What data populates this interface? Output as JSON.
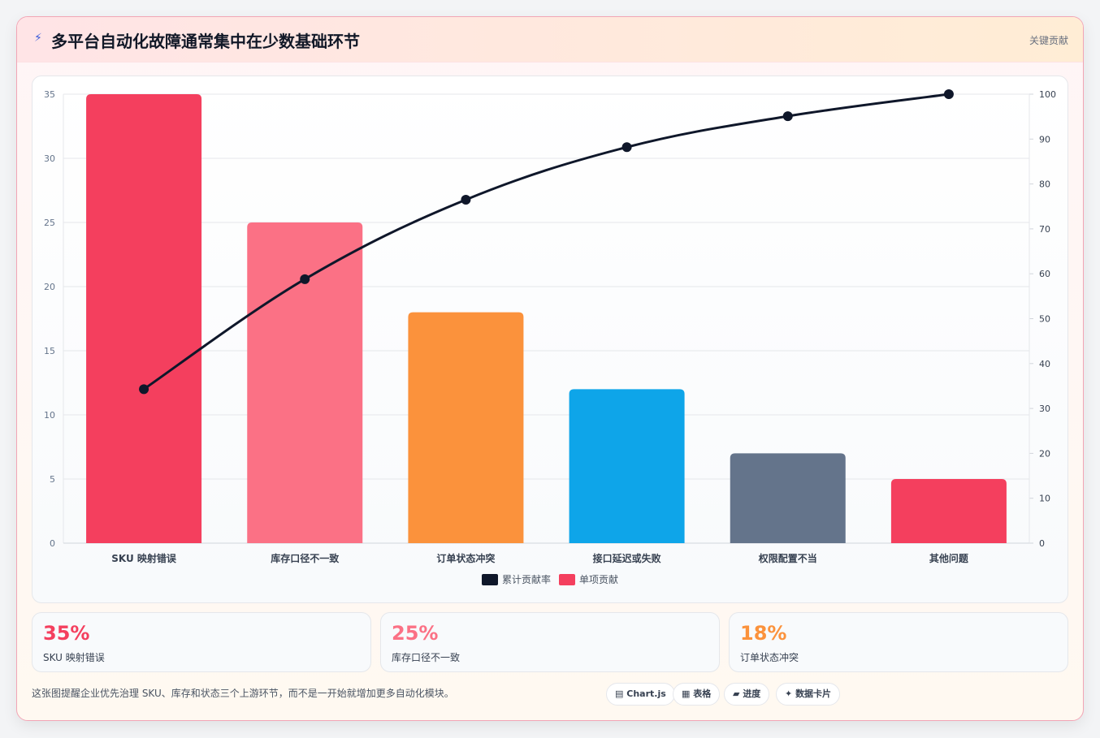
{
  "header": {
    "icon": "lightning-icon",
    "title": "多平台自动化故障通常集中在少数基础环节",
    "badge": "关键贡献"
  },
  "chart_data": {
    "type": "bar",
    "categories": [
      "SKU 映射错误",
      "库存口径不一致",
      "订单状态冲突",
      "接口延迟或失败",
      "权限配置不当",
      "其他问题"
    ],
    "series": [
      {
        "name": "单项贡献",
        "type": "bar",
        "axis": "left",
        "values": [
          35,
          25,
          18,
          12,
          7,
          5
        ],
        "colors": [
          "#f43f5e",
          "#fb7185",
          "#fb923c",
          "#0ea5e9",
          "#64748b",
          "#f43f5e"
        ]
      },
      {
        "name": "累计贡献率",
        "type": "line",
        "axis": "right",
        "values": [
          34.3,
          58.8,
          76.5,
          88.2,
          95.1,
          100
        ],
        "color": "#0f172a"
      }
    ],
    "ylim": [
      0,
      35
    ],
    "y_ticks": [
      "0",
      "5",
      "10",
      "15",
      "20",
      "25",
      "30",
      "35"
    ],
    "y2lim": [
      0,
      100
    ],
    "y2_ticks": [
      "0",
      "10",
      "20",
      "30",
      "40",
      "50",
      "60",
      "70",
      "80",
      "90",
      "100"
    ],
    "legend_position": "bottom",
    "grid": true
  },
  "kpis": [
    {
      "value": "35%",
      "label": "SKU 映射错误",
      "color": "#f43f5e"
    },
    {
      "value": "25%",
      "label": "库存口径不一致",
      "color": "#fb7185"
    },
    {
      "value": "18%",
      "label": "订单状态冲突",
      "color": "#fb923c"
    }
  ],
  "footer": {
    "text": "这张图提醒企业优先治理 SKU、库存和状态三个上游环节，而不是一开始就增加更多自动化模块。"
  },
  "tags": [
    {
      "icon": "chart-icon",
      "glyph": "▤",
      "label": "Chart.js"
    },
    {
      "icon": "table-icon",
      "glyph": "▦",
      "label": "表格"
    },
    {
      "icon": "progress-icon",
      "glyph": "▰",
      "label": "进度"
    },
    {
      "icon": "card-icon",
      "glyph": "✦",
      "label": "数据卡片"
    }
  ]
}
